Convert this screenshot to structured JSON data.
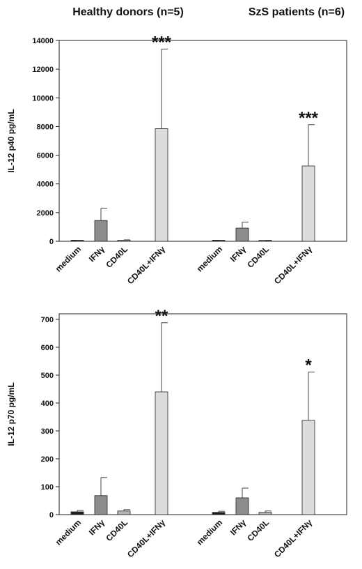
{
  "chart_data": [
    {
      "type": "bar",
      "group_titles": [
        "Healthy donors (n=5)",
        "SzS patients (n=6)"
      ],
      "categories": [
        "medium",
        "IFNγ",
        "CD40L",
        "CD40L+IFNγ"
      ],
      "ylabel": "IL-12 p40 pg/mL",
      "ylim": [
        0,
        14000
      ],
      "yticks": [
        "0",
        "2000",
        "4000",
        "6000",
        "8000",
        "10000",
        "12000",
        "14000"
      ],
      "groups": [
        {
          "values": [
            0,
            1450,
            60,
            7850
          ],
          "errors": [
            40,
            850,
            40,
            5550
          ],
          "significance": [
            "",
            "",
            "",
            "***"
          ]
        },
        {
          "values": [
            30,
            920,
            30,
            5250
          ],
          "errors": [
            30,
            420,
            20,
            2880
          ],
          "significance": [
            "",
            "",
            "",
            "***"
          ]
        }
      ],
      "colors": [
        "#1e1e1e",
        "#8c8c8c",
        "#b4b4b4",
        "#dcdcdc"
      ],
      "grid": false
    },
    {
      "type": "bar",
      "categories": [
        "medium",
        "IFNγ",
        "CD40L",
        "CD40L+IFNγ"
      ],
      "ylabel": "IL-12 p70 pg/mL",
      "ylim": [
        0,
        720
      ],
      "yticks": [
        "0",
        "100",
        "200",
        "300",
        "400",
        "500",
        "600",
        "700"
      ],
      "groups": [
        {
          "values": [
            10,
            68,
            13,
            440
          ],
          "errors": [
            5,
            65,
            5,
            248
          ],
          "significance": [
            "",
            "",
            "",
            "**"
          ]
        },
        {
          "values": [
            8,
            60,
            8,
            338
          ],
          "errors": [
            4,
            35,
            5,
            173
          ],
          "significance": [
            "",
            "",
            "",
            "*"
          ]
        }
      ],
      "colors": [
        "#1e1e1e",
        "#8c8c8c",
        "#b4b4b4",
        "#dcdcdc"
      ],
      "grid": false
    }
  ]
}
